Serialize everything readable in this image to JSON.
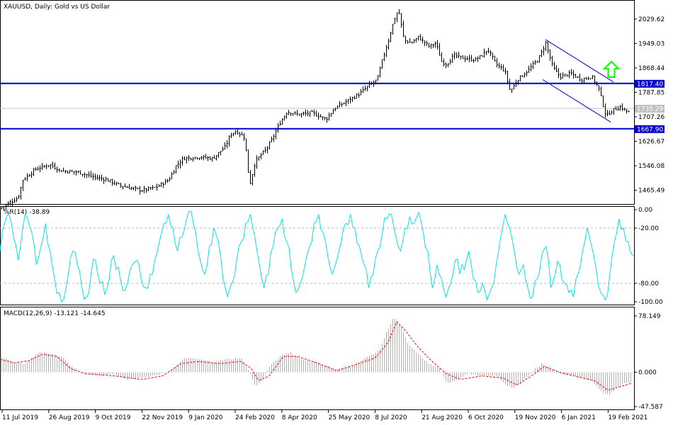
{
  "chart_data": [
    {
      "type": "candlestick",
      "title": "XAUUSD, Daily:  Gold vs US Dollar",
      "y_ticks": [
        "2029.62",
        "1949.03",
        "1868.44",
        "1787.85",
        "1707.26",
        "1626.67",
        "1546.08",
        "1465.49"
      ],
      "ylim": [
        1420,
        2090
      ],
      "x_ticks": [
        "11 Jul 2019",
        "26 Aug 2019",
        "9 Oct 2019",
        "22 Nov 2019",
        "9 Jan 2020",
        "24 Feb 2020",
        "8 Apr 2020",
        "25 May 2020",
        "8 Jul 2020",
        "21 Aug 2020",
        "6 Oct 2020",
        "19 Nov 2020",
        "6 Jan 2021",
        "19 Feb 2021"
      ],
      "series": [
        {
          "close_trend": [
            [
              0,
              1405
            ],
            [
              10,
              1420
            ],
            [
              25,
              1440
            ],
            [
              32,
              1500
            ],
            [
              50,
              1535
            ],
            [
              70,
              1550
            ],
            [
              85,
              1530
            ],
            [
              110,
              1525
            ],
            [
              130,
              1510
            ],
            [
              150,
              1500
            ],
            [
              170,
              1480
            ],
            [
              200,
              1465
            ],
            [
              220,
              1475
            ],
            [
              238,
              1500
            ],
            [
              248,
              1545
            ],
            [
              258,
              1570
            ],
            [
              280,
              1575
            ],
            [
              300,
              1570
            ],
            [
              318,
              1610
            ],
            [
              325,
              1650
            ],
            [
              333,
              1660
            ],
            [
              345,
              1640
            ],
            [
              352,
              1480
            ],
            [
              360,
              1560
            ],
            [
              375,
              1600
            ],
            [
              383,
              1630
            ],
            [
              393,
              1680
            ],
            [
              405,
              1725
            ],
            [
              420,
              1715
            ],
            [
              440,
              1720
            ],
            [
              460,
              1700
            ],
            [
              472,
              1735
            ],
            [
              490,
              1760
            ],
            [
              505,
              1780
            ],
            [
              520,
              1810
            ],
            [
              532,
              1830
            ],
            [
              540,
              1900
            ],
            [
              548,
              1960
            ],
            [
              555,
              2020
            ],
            [
              562,
              2060
            ],
            [
              570,
              1960
            ],
            [
              580,
              1950
            ],
            [
              590,
              1970
            ],
            [
              605,
              1940
            ],
            [
              615,
              1950
            ],
            [
              623,
              1890
            ],
            [
              630,
              1880
            ],
            [
              640,
              1910
            ],
            [
              655,
              1900
            ],
            [
              670,
              1895
            ],
            [
              680,
              1910
            ],
            [
              688,
              1930
            ],
            [
              700,
              1880
            ],
            [
              712,
              1860
            ],
            [
              720,
              1790
            ],
            [
              730,
              1830
            ],
            [
              745,
              1860
            ],
            [
              760,
              1900
            ],
            [
              770,
              1950
            ],
            [
              780,
              1870
            ],
            [
              790,
              1840
            ],
            [
              805,
              1850
            ],
            [
              820,
              1830
            ],
            [
              835,
              1840
            ],
            [
              845,
              1800
            ],
            [
              855,
              1710
            ],
            [
              865,
              1730
            ],
            [
              875,
              1740
            ],
            [
              888,
              1720
            ],
            [
              893,
              1745
            ]
          ]
        }
      ],
      "horizontal_levels": [
        {
          "value": 1817.4,
          "label": "1817.40",
          "color": "#0000cc"
        },
        {
          "value": 1667.9,
          "label": "1667.90",
          "color": "#0000cc"
        },
        {
          "value": 1735.29,
          "label": "1735.29",
          "color": "#c0c0c0"
        }
      ],
      "channel_color": "#0000cc",
      "arrow_color": "#00ff00",
      "candle_color": "#000000"
    },
    {
      "type": "line",
      "label": "%R(14) -38.89",
      "y_ticks": [
        "0.00",
        "-20.00",
        "-80.00",
        "-100.00"
      ],
      "ylim": [
        -100,
        0
      ],
      "levels": [
        -20,
        -80
      ],
      "series": [
        {
          "color": "#00e5e5",
          "values": [
            -45,
            -15,
            -5,
            -30,
            -55,
            -20,
            -8,
            -25,
            -60,
            -40,
            -15,
            -45,
            -75,
            -90,
            -98,
            -70,
            -45,
            -60,
            -85,
            -95,
            -70,
            -55,
            -80,
            -92,
            -75,
            -50,
            -62,
            -88,
            -80,
            -60,
            -55,
            -75,
            -85,
            -70,
            -55,
            -35,
            -15,
            -5,
            -20,
            -45,
            -30,
            -10,
            -2,
            -25,
            -55,
            -70,
            -40,
            -20,
            -35,
            -75,
            -95,
            -80,
            -55,
            -35,
            -15,
            -5,
            -30,
            -60,
            -85,
            -70,
            -40,
            -20,
            -10,
            -35,
            -65,
            -90,
            -80,
            -60,
            -40,
            -15,
            -5,
            -25,
            -50,
            -70,
            -55,
            -35,
            -15,
            -5,
            -20,
            -40,
            -60,
            -85,
            -70,
            -45,
            -25,
            -10,
            -5,
            -30,
            -45,
            -20,
            -8,
            -15,
            -3,
            -25,
            -45,
            -85,
            -60,
            -75,
            -95,
            -80,
            -55,
            -70,
            -65,
            -45,
            -75,
            -90,
            -80,
            -98,
            -85,
            -60,
            -30,
            -5,
            -20,
            -45,
            -70,
            -60,
            -85,
            -95,
            -75,
            -50,
            -40,
            -85,
            -70,
            -60,
            -80,
            -90,
            -95,
            -70,
            -45,
            -20,
            -40,
            -65,
            -90,
            -98,
            -70,
            -35,
            -10,
            -20,
            -35,
            -50
          ]
        }
      ]
    },
    {
      "type": "bar_line",
      "label": "MACD(12,26,9) -13.121 -14.645",
      "y_ticks": [
        "78.149",
        "0.000",
        "-47.587"
      ],
      "ylim": [
        -47.587,
        78.149
      ],
      "bar_color": "#b0b0b0",
      "signal_color": "#ff0000",
      "macd_keypoints": [
        [
          0,
          22
        ],
        [
          15,
          15
        ],
        [
          35,
          12
        ],
        [
          55,
          28
        ],
        [
          70,
          26
        ],
        [
          90,
          20
        ],
        [
          100,
          8
        ],
        [
          120,
          -2
        ],
        [
          140,
          -5
        ],
        [
          160,
          -2
        ],
        [
          180,
          -10
        ],
        [
          200,
          -8
        ],
        [
          230,
          -2
        ],
        [
          245,
          5
        ],
        [
          260,
          20
        ],
        [
          280,
          18
        ],
        [
          300,
          14
        ],
        [
          320,
          18
        ],
        [
          340,
          20
        ],
        [
          350,
          4
        ],
        [
          360,
          -20
        ],
        [
          370,
          -10
        ],
        [
          380,
          8
        ],
        [
          395,
          22
        ],
        [
          410,
          28
        ],
        [
          425,
          18
        ],
        [
          445,
          14
        ],
        [
          460,
          10
        ],
        [
          475,
          3
        ],
        [
          490,
          8
        ],
        [
          505,
          14
        ],
        [
          520,
          22
        ],
        [
          535,
          30
        ],
        [
          545,
          55
        ],
        [
          555,
          76
        ],
        [
          565,
          65
        ],
        [
          575,
          40
        ],
        [
          590,
          25
        ],
        [
          605,
          12
        ],
        [
          620,
          5
        ],
        [
          630,
          -15
        ],
        [
          645,
          -10
        ],
        [
          660,
          -2
        ],
        [
          680,
          -5
        ],
        [
          700,
          -5
        ],
        [
          715,
          -18
        ],
        [
          725,
          -22
        ],
        [
          740,
          -10
        ],
        [
          755,
          5
        ],
        [
          765,
          12
        ],
        [
          775,
          8
        ],
        [
          790,
          -2
        ],
        [
          805,
          -5
        ],
        [
          820,
          -8
        ],
        [
          835,
          -12
        ],
        [
          850,
          -28
        ],
        [
          860,
          -32
        ],
        [
          870,
          -22
        ],
        [
          880,
          -16
        ],
        [
          893,
          -13
        ]
      ],
      "signal_keypoints": [
        [
          0,
          18
        ],
        [
          20,
          13
        ],
        [
          40,
          16
        ],
        [
          60,
          25
        ],
        [
          80,
          22
        ],
        [
          100,
          5
        ],
        [
          120,
          -2
        ],
        [
          150,
          -4
        ],
        [
          170,
          -6
        ],
        [
          200,
          -10
        ],
        [
          230,
          -5
        ],
        [
          255,
          12
        ],
        [
          280,
          15
        ],
        [
          310,
          12
        ],
        [
          340,
          15
        ],
        [
          355,
          5
        ],
        [
          365,
          -12
        ],
        [
          380,
          -5
        ],
        [
          400,
          22
        ],
        [
          420,
          22
        ],
        [
          450,
          12
        ],
        [
          475,
          2
        ],
        [
          500,
          10
        ],
        [
          530,
          20
        ],
        [
          548,
          42
        ],
        [
          560,
          70
        ],
        [
          572,
          58
        ],
        [
          590,
          35
        ],
        [
          610,
          15
        ],
        [
          630,
          -2
        ],
        [
          650,
          -10
        ],
        [
          680,
          -5
        ],
        [
          710,
          -8
        ],
        [
          730,
          -18
        ],
        [
          750,
          -5
        ],
        [
          768,
          8
        ],
        [
          790,
          0
        ],
        [
          810,
          -5
        ],
        [
          840,
          -12
        ],
        [
          858,
          -25
        ],
        [
          875,
          -20
        ],
        [
          893,
          -15
        ]
      ]
    }
  ]
}
